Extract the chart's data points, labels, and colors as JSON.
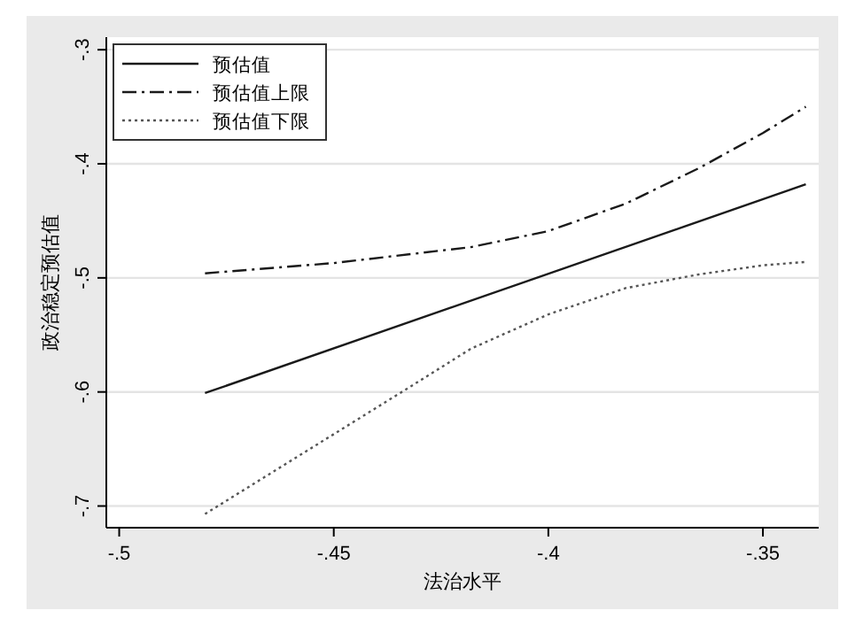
{
  "chart_data": {
    "type": "line",
    "xlabel": "法治水平",
    "ylabel": "政治稳定预估值",
    "xlim": [
      -0.503,
      -0.337
    ],
    "xticks": [
      {
        "value": -0.5,
        "label": "-.5"
      },
      {
        "value": -0.45,
        "label": "-.45"
      },
      {
        "value": -0.4,
        "label": "-.4"
      },
      {
        "value": -0.35,
        "label": "-.35"
      }
    ],
    "ylim": [
      -0.719,
      -0.289
    ],
    "yticks": [
      {
        "value": -0.7,
        "label": "-.7"
      },
      {
        "value": -0.6,
        "label": "-.6"
      },
      {
        "value": -0.5,
        "label": "-.5"
      },
      {
        "value": -0.4,
        "label": "-.4"
      },
      {
        "value": -0.3,
        "label": "-.3"
      }
    ],
    "grid": "y",
    "legend": "top left",
    "series": [
      {
        "name": "预估值",
        "color": "#1a1a1a",
        "line_style": "solid",
        "x": [
          -0.48,
          -0.34
        ],
        "values": [
          -0.601,
          -0.418
        ]
      },
      {
        "name": "预估值上限",
        "color": "#1a1a1a",
        "line_style": "dashdot",
        "x": [
          -0.48,
          -0.45,
          -0.418,
          -0.4,
          -0.382,
          -0.365,
          -0.35,
          -0.34
        ],
        "values": [
          -0.496,
          -0.487,
          -0.473,
          -0.459,
          -0.435,
          -0.404,
          -0.373,
          -0.35
        ]
      },
      {
        "name": "预估值下限",
        "color": "#555555",
        "line_style": "dotted",
        "x": [
          -0.48,
          -0.45,
          -0.432,
          -0.418,
          -0.4,
          -0.382,
          -0.365,
          -0.35,
          -0.34
        ],
        "values": [
          -0.707,
          -0.637,
          -0.595,
          -0.562,
          -0.532,
          -0.509,
          -0.497,
          -0.489,
          -0.486
        ]
      }
    ]
  }
}
